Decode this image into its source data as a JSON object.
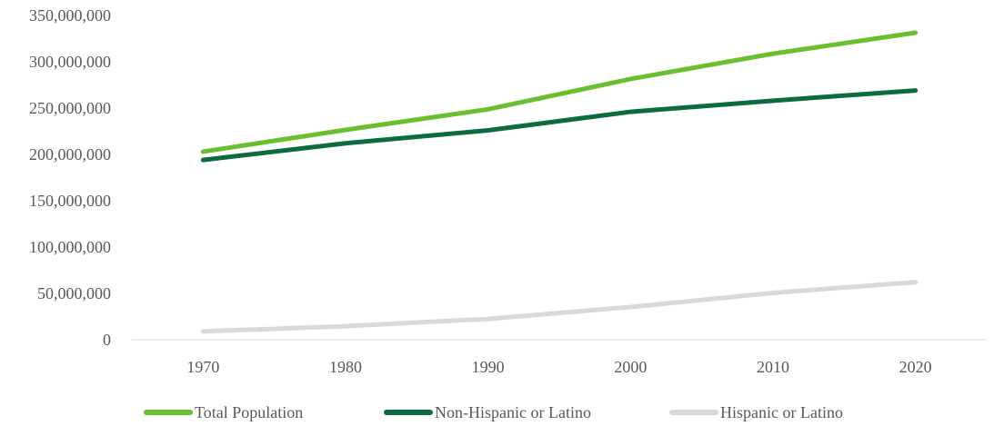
{
  "chart_data": {
    "type": "line",
    "title": "",
    "xlabel": "",
    "ylabel": "",
    "categories": [
      "1970",
      "1980",
      "1990",
      "2000",
      "2010",
      "2020"
    ],
    "ylim": [
      0,
      350000000
    ],
    "yticks": [
      0,
      50000000,
      100000000,
      150000000,
      200000000,
      250000000,
      300000000,
      350000000
    ],
    "ytick_labels": [
      "0",
      "50,000,000",
      "100,000,000",
      "150,000,000",
      "200,000,000",
      "250,000,000",
      "300,000,000",
      "350,000,000"
    ],
    "grid": false,
    "legend_position": "bottom",
    "series": [
      {
        "name": "Total Population",
        "color": "#6abf2f",
        "values": [
          203000000,
          226500000,
          248700000,
          281400000,
          308700000,
          331400000
        ]
      },
      {
        "name": "Non-Hispanic or Latino",
        "color": "#0e6b3f",
        "values": [
          194000000,
          212000000,
          226000000,
          246000000,
          258000000,
          269000000
        ]
      },
      {
        "name": "Hispanic or Latino",
        "color": "#d9d9d9",
        "values": [
          9000000,
          14600000,
          22400000,
          35300000,
          50500000,
          62100000
        ]
      }
    ]
  }
}
